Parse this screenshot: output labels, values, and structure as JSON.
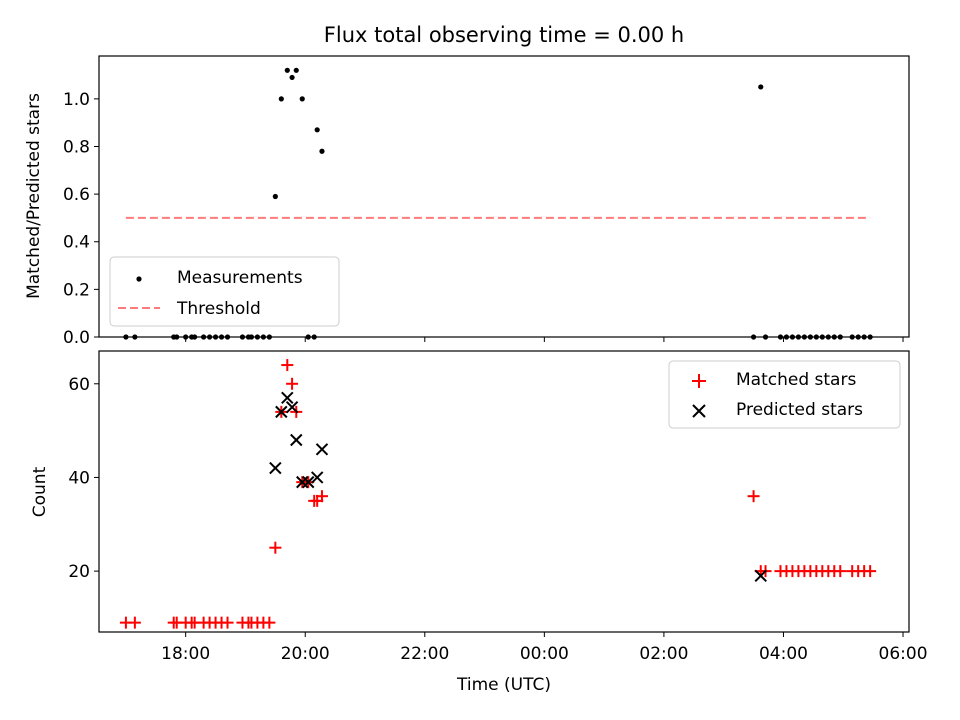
{
  "chart_data": [
    {
      "type": "scatter",
      "title": "Flux total observing time = 0.00 h",
      "xlabel": "",
      "ylabel": "Matched/Predicted stars",
      "xlim_hours": [
        16.55,
        30.1
      ],
      "ylim": [
        0,
        1.18
      ],
      "yticks": [
        0.0,
        0.2,
        0.4,
        0.6,
        0.8,
        1.0
      ],
      "ytick_labels": [
        "0.0",
        "0.2",
        "0.4",
        "0.6",
        "0.8",
        "1.0"
      ],
      "x_tick_hours": [
        18,
        20,
        22,
        24,
        26,
        28,
        30
      ],
      "legend": {
        "placement": "lower-left",
        "entries": [
          "Measurements",
          "Threshold"
        ]
      },
      "series": [
        {
          "name": "Measurements",
          "kind": "points",
          "color": "#000000",
          "x": [
            17.0,
            17.15,
            17.8,
            17.85,
            18.0,
            18.1,
            18.15,
            18.3,
            18.4,
            18.5,
            18.6,
            18.7,
            18.95,
            19.05,
            19.1,
            19.2,
            19.3,
            19.4,
            19.5,
            19.6,
            19.7,
            19.78,
            19.85,
            19.95,
            20.05,
            20.15,
            20.2,
            20.28,
            27.5,
            27.62,
            27.7,
            27.95,
            28.05,
            28.15,
            28.25,
            28.35,
            28.45,
            28.55,
            28.65,
            28.75,
            28.85,
            28.95,
            29.15,
            29.25,
            29.35,
            29.45
          ],
          "y": [
            0,
            0,
            0,
            0,
            0,
            0,
            0,
            0,
            0,
            0,
            0,
            0,
            0,
            0,
            0,
            0,
            0,
            0,
            0.59,
            1.0,
            1.12,
            1.09,
            1.12,
            1.0,
            0,
            0,
            0.87,
            0.78,
            0,
            1.05,
            0,
            0,
            0,
            0,
            0,
            0,
            0,
            0,
            0,
            0,
            0,
            0,
            0,
            0,
            0,
            0
          ]
        },
        {
          "name": "Threshold",
          "kind": "dashed-line",
          "color": "#ff7b7b",
          "x": [
            17.0,
            29.45
          ],
          "y": [
            0.5,
            0.5
          ]
        }
      ]
    },
    {
      "type": "scatter",
      "title": "",
      "xlabel": "Time (UTC)",
      "ylabel": "Count",
      "xlim_hours": [
        16.55,
        30.1
      ],
      "ylim": [
        7,
        67
      ],
      "yticks": [
        20,
        40,
        60
      ],
      "ytick_labels": [
        "20",
        "40",
        "60"
      ],
      "x_tick_hours": [
        18,
        20,
        22,
        24,
        26,
        28,
        30
      ],
      "x_tick_labels": [
        "18:00",
        "20:00",
        "22:00",
        "00:00",
        "02:00",
        "04:00",
        "06:00"
      ],
      "legend": {
        "placement": "top-right",
        "entries": [
          "Matched stars",
          "Predicted stars"
        ]
      },
      "series": [
        {
          "name": "Matched stars",
          "marker": "plus",
          "color": "#ff0000",
          "x": [
            17.0,
            17.15,
            17.8,
            17.85,
            18.0,
            18.1,
            18.15,
            18.3,
            18.4,
            18.5,
            18.6,
            18.7,
            18.95,
            19.05,
            19.1,
            19.2,
            19.3,
            19.4,
            19.5,
            19.6,
            19.7,
            19.78,
            19.85,
            19.95,
            20.05,
            20.15,
            20.2,
            20.28,
            27.5,
            27.62,
            27.7,
            27.95,
            28.05,
            28.15,
            28.25,
            28.35,
            28.45,
            28.55,
            28.65,
            28.75,
            28.85,
            28.95,
            29.15,
            29.25,
            29.35,
            29.45
          ],
          "y": [
            9,
            9,
            9,
            9,
            9,
            9,
            9,
            9,
            9,
            9,
            9,
            9,
            9,
            9,
            9,
            9,
            9,
            9,
            25,
            54,
            64,
            60,
            54,
            39,
            39,
            35,
            35,
            36,
            36,
            20,
            20,
            20,
            20,
            20,
            20,
            20,
            20,
            20,
            20,
            20,
            20,
            20,
            20,
            20,
            20,
            20
          ]
        },
        {
          "name": "Predicted stars",
          "marker": "x",
          "color": "#000000",
          "x": [
            19.5,
            19.6,
            19.7,
            19.78,
            19.85,
            19.95,
            20.05,
            20.2,
            20.28,
            27.62
          ],
          "y": [
            42,
            54,
            57,
            55,
            48,
            39,
            39,
            40,
            46,
            19
          ]
        }
      ]
    }
  ]
}
